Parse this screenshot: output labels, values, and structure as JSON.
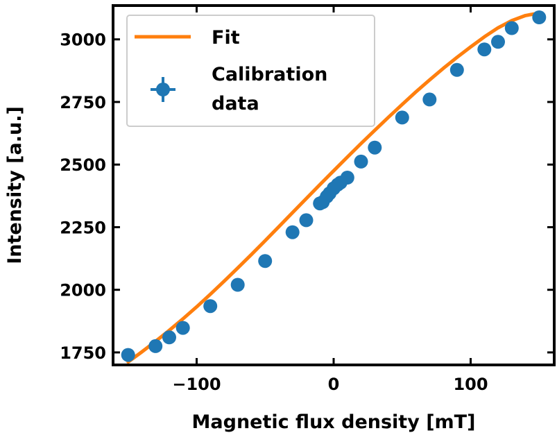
{
  "chart_data": {
    "type": "scatter",
    "title": "",
    "xlabel": "Magnetic flux density [mT]",
    "ylabel": "Intensity [a.u.]",
    "xlim": [
      -161,
      161
    ],
    "ylim": [
      1700,
      3135
    ],
    "xticks": [
      -100,
      0,
      100
    ],
    "xtick_labels": [
      "−100",
      "0",
      "100"
    ],
    "yticks": [
      1750,
      2000,
      2250,
      2500,
      2750,
      3000
    ],
    "ytick_labels": [
      "1750",
      "2000",
      "2250",
      "2500",
      "2750",
      "3000"
    ],
    "grid": false,
    "legend_position": "top-left",
    "series": [
      {
        "name": "Fit",
        "kind": "line",
        "color": "#ff7f0e",
        "x": [
          -150,
          -140,
          -130,
          -120,
          -110,
          -100,
          -90,
          -80,
          -70,
          -60,
          -50,
          -40,
          -30,
          -20,
          -10,
          0,
          10,
          20,
          30,
          40,
          50,
          60,
          70,
          80,
          90,
          100,
          110,
          120,
          130,
          140,
          150
        ],
        "y": [
          1712,
          1752,
          1794,
          1838,
          1884,
          1932,
          1982,
          2034,
          2087,
          2141,
          2196,
          2252,
          2308,
          2364,
          2420,
          2475,
          2530,
          2584,
          2637,
          2689,
          2740,
          2790,
          2838,
          2884,
          2928,
          2970,
          3010,
          3046,
          3075,
          3095,
          3105
        ]
      },
      {
        "name": "Calibration data",
        "legend_label_lines": [
          "Calibration",
          "data"
        ],
        "kind": "errorbar",
        "color": "#1f77b4",
        "x": [
          -150,
          -130,
          -120,
          -110,
          -90,
          -70,
          -50,
          -30,
          -20,
          -10,
          -8,
          -5,
          -3,
          0,
          3,
          5,
          10,
          20,
          30,
          50,
          70,
          90,
          110,
          120,
          130,
          150
        ],
        "y": [
          1740,
          1775,
          1810,
          1848,
          1935,
          2020,
          2115,
          2230,
          2278,
          2345,
          2350,
          2372,
          2385,
          2405,
          2420,
          2428,
          2448,
          2512,
          2568,
          2688,
          2760,
          2878,
          2960,
          2990,
          3045,
          3088
        ]
      }
    ]
  }
}
